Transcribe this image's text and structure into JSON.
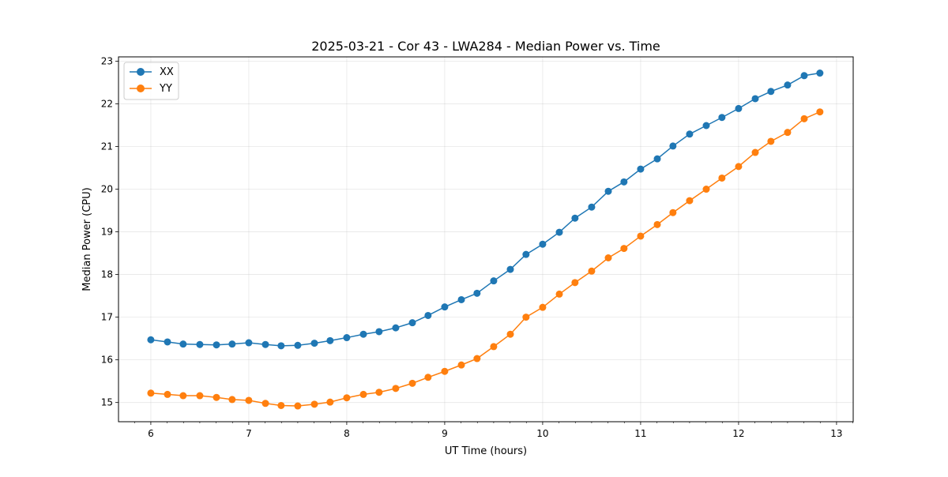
{
  "chart_data": {
    "type": "line",
    "title": "2025-03-21 - Cor 43 - LWA284 - Median Power vs. Time",
    "xlabel": "UT Time (hours)",
    "ylabel": "Median Power (CPU)",
    "xlim": [
      5.67,
      13.17
    ],
    "ylim": [
      14.55,
      23.1
    ],
    "x_ticks": [
      6,
      7,
      8,
      9,
      10,
      11,
      12,
      13
    ],
    "y_ticks": [
      15,
      16,
      17,
      18,
      19,
      20,
      21,
      22,
      23
    ],
    "grid": true,
    "legend_position": "top-left",
    "x": [
      6.0,
      6.17,
      6.33,
      6.5,
      6.67,
      6.83,
      7.0,
      7.17,
      7.33,
      7.5,
      7.67,
      7.83,
      8.0,
      8.17,
      8.33,
      8.5,
      8.67,
      8.83,
      9.0,
      9.17,
      9.33,
      9.5,
      9.67,
      9.83,
      10.0,
      10.17,
      10.33,
      10.5,
      10.67,
      10.83,
      11.0,
      11.17,
      11.33,
      11.5,
      11.67,
      11.83,
      12.0,
      12.17,
      12.33,
      12.5,
      12.67,
      12.83
    ],
    "series": [
      {
        "name": "XX",
        "color": "#1f77b4",
        "values": [
          16.47,
          16.42,
          16.37,
          16.36,
          16.35,
          16.37,
          16.4,
          16.36,
          16.33,
          16.34,
          16.39,
          16.45,
          16.52,
          16.6,
          16.66,
          16.75,
          16.87,
          17.04,
          17.24,
          17.41,
          17.56,
          17.85,
          18.12,
          18.47,
          18.71,
          18.99,
          19.32,
          19.58,
          19.95,
          20.17,
          20.47,
          20.71,
          21.01,
          21.29,
          21.49,
          21.68,
          21.89,
          22.12,
          22.29,
          22.44,
          22.66,
          22.72
        ]
      },
      {
        "name": "YY",
        "color": "#ff7f0e",
        "values": [
          15.22,
          15.19,
          15.16,
          15.16,
          15.12,
          15.07,
          15.05,
          14.98,
          14.93,
          14.92,
          14.96,
          15.01,
          15.11,
          15.19,
          15.24,
          15.33,
          15.45,
          15.59,
          15.73,
          15.88,
          16.03,
          16.31,
          16.6,
          17.0,
          17.23,
          17.54,
          17.81,
          18.08,
          18.39,
          18.61,
          18.9,
          19.17,
          19.45,
          19.73,
          20.0,
          20.26,
          20.53,
          20.86,
          21.12,
          21.33,
          21.65,
          21.81
        ]
      }
    ]
  }
}
